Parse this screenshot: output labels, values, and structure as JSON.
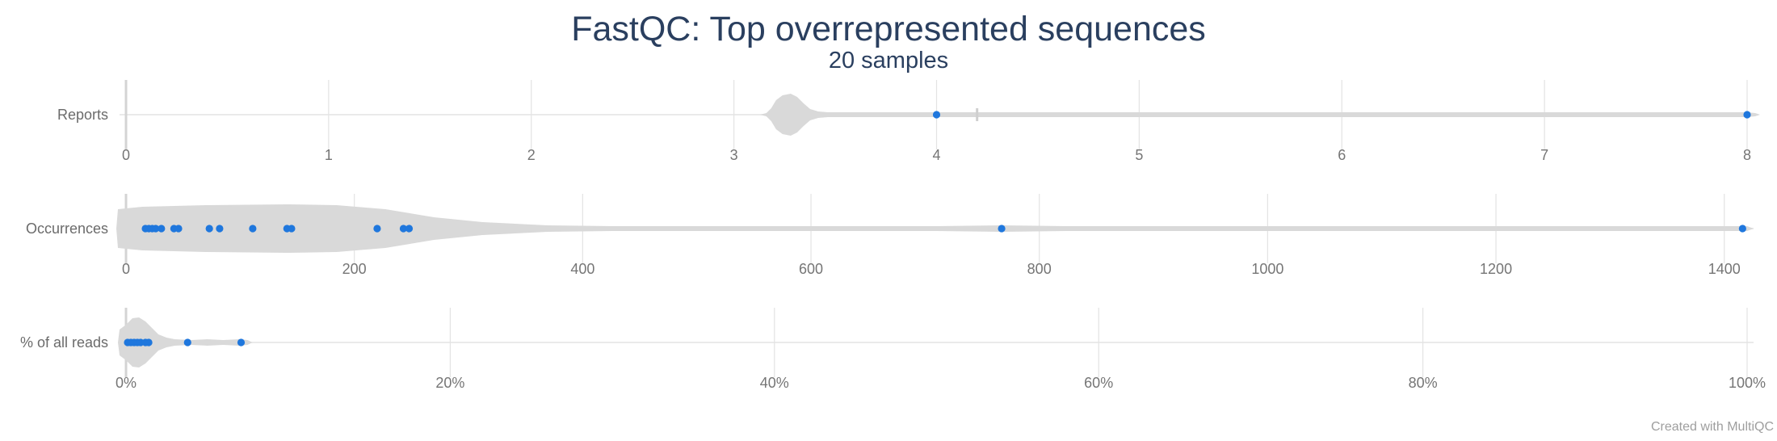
{
  "title": "FastQC: Top overrepresented sequences",
  "subtitle": "20 samples",
  "credit": "Created with MultiQC",
  "colors": {
    "violin": "#d9d9d9",
    "point": "#1f77dd",
    "grid": "#e3e3e3",
    "text": "#2a3f5f"
  },
  "chart_data": {
    "type": "violin",
    "title": "FastQC: Top overrepresented sequences",
    "subtitle": "20 samples",
    "rows": [
      {
        "label": "Reports",
        "range": [
          0,
          8
        ],
        "ticks": [
          0,
          1,
          2,
          3,
          4,
          5,
          6,
          7,
          8
        ],
        "tick_labels": [
          "0",
          "1",
          "2",
          "3",
          "4",
          "5",
          "6",
          "7",
          "8"
        ],
        "points": [
          4,
          8
        ]
      },
      {
        "label": "Occurrences",
        "range": [
          0,
          1420
        ],
        "ticks": [
          0,
          200,
          400,
          600,
          800,
          1000,
          1200,
          1400
        ],
        "tick_labels": [
          "0",
          "200",
          "400",
          "600",
          "800",
          "1000",
          "1200",
          "1400"
        ],
        "points": [
          17,
          20,
          23,
          26,
          31,
          42,
          46,
          73,
          82,
          111,
          141,
          145,
          220,
          243,
          248,
          767,
          1416
        ]
      },
      {
        "label": "% of all reads",
        "range": [
          0,
          100
        ],
        "ticks": [
          0,
          20,
          40,
          60,
          80,
          100
        ],
        "tick_labels": [
          "0%",
          "20%",
          "40%",
          "60%",
          "80%",
          "100%"
        ],
        "points": [
          0.1,
          0.3,
          0.5,
          0.7,
          0.9,
          1.2,
          1.4,
          3.8,
          7.1
        ]
      }
    ]
  }
}
